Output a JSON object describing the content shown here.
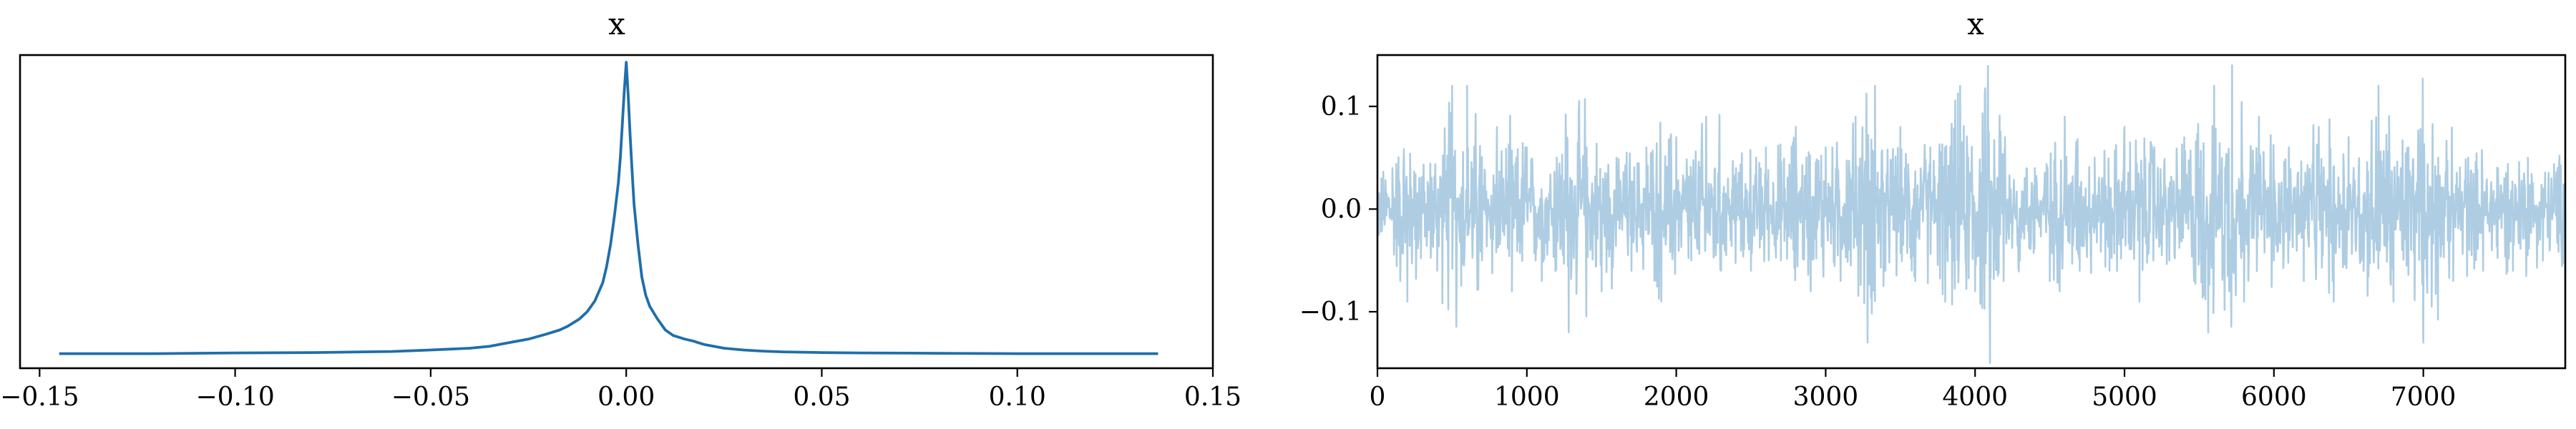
{
  "chart_data": [
    {
      "type": "line",
      "title": "x",
      "xlabel": "",
      "ylabel": "",
      "xlim": [
        -0.155,
        0.15
      ],
      "ylim": [
        -0.4,
        8.2
      ],
      "xticks": [
        -0.15,
        -0.1,
        -0.05,
        0.0,
        0.05,
        0.1,
        0.15
      ],
      "xtick_labels": [
        "−0.15",
        "−0.10",
        "−0.05",
        "0.00",
        "0.05",
        "0.10",
        "0.15"
      ],
      "yticks_visible": false,
      "grid": false,
      "color": "#1f6eab",
      "series": [
        {
          "x": [
            -0.145,
            -0.12,
            -0.1,
            -0.08,
            -0.06,
            -0.05,
            -0.04,
            -0.035,
            -0.03,
            -0.025,
            -0.02,
            -0.017,
            -0.015,
            -0.012,
            -0.01,
            -0.008,
            -0.006,
            -0.005,
            -0.004,
            -0.003,
            -0.002,
            -0.0015,
            -0.001,
            -0.0005,
            0.0,
            0.0005,
            0.001,
            0.0015,
            0.002,
            0.003,
            0.004,
            0.005,
            0.006,
            0.008,
            0.01,
            0.012,
            0.015,
            0.017,
            0.02,
            0.025,
            0.03,
            0.035,
            0.04,
            0.05,
            0.06,
            0.08,
            0.1,
            0.12,
            0.136
          ],
          "y": [
            0.0,
            0.0,
            0.02,
            0.03,
            0.06,
            0.1,
            0.15,
            0.2,
            0.3,
            0.4,
            0.55,
            0.65,
            0.75,
            0.95,
            1.15,
            1.45,
            1.95,
            2.4,
            3.0,
            3.8,
            4.7,
            5.4,
            6.3,
            7.2,
            8.0,
            7.1,
            6.0,
            5.0,
            4.1,
            3.0,
            2.1,
            1.6,
            1.3,
            0.95,
            0.65,
            0.5,
            0.4,
            0.35,
            0.25,
            0.15,
            0.1,
            0.07,
            0.05,
            0.03,
            0.02,
            0.01,
            0.0,
            0.0,
            0.0
          ]
        }
      ]
    },
    {
      "type": "line",
      "title": "x",
      "xlabel": "",
      "ylabel": "",
      "xlim": [
        0,
        7950
      ],
      "ylim": [
        -0.155,
        0.15
      ],
      "xticks": [
        0,
        1000,
        2000,
        3000,
        4000,
        5000,
        6000,
        7000
      ],
      "xtick_labels": [
        "0",
        "1000",
        "2000",
        "3000",
        "4000",
        "5000",
        "6000",
        "7000"
      ],
      "yticks": [
        0.1,
        0.0,
        -0.1
      ],
      "ytick_labels": [
        "0.1",
        "0.0",
        "−0.1"
      ],
      "grid": false,
      "color": "#aecde3",
      "n_samples": 8000,
      "series": [
        {
          "x": [
            0,
            100,
            200,
            300,
            400,
            500,
            530,
            600,
            700,
            800,
            900,
            1000,
            1100,
            1200,
            1280,
            1400,
            1500,
            1600,
            1700,
            1800,
            1900,
            2000,
            2100,
            2200,
            2300,
            2400,
            2500,
            2600,
            2700,
            2800,
            2900,
            3000,
            3100,
            3200,
            3280,
            3330,
            3400,
            3500,
            3600,
            3700,
            3800,
            3900,
            4000,
            4100,
            4200,
            4300,
            4400,
            4500,
            4600,
            4700,
            4800,
            4900,
            5000,
            5100,
            5200,
            5300,
            5400,
            5560,
            5600,
            5700,
            5720,
            5800,
            5900,
            6000,
            6100,
            6200,
            6300,
            6400,
            6500,
            6600,
            6700,
            6800,
            6900,
            7000,
            7100,
            7200,
            7300,
            7400,
            7500,
            7600,
            7700,
            7800,
            7900,
            7950
          ],
          "y": [
            0.0,
            0.04,
            -0.09,
            0.03,
            -0.06,
            0.12,
            -0.07,
            0.12,
            -0.05,
            0.08,
            -0.08,
            0.06,
            -0.07,
            0.05,
            -0.12,
            0.06,
            -0.08,
            0.05,
            -0.06,
            0.06,
            -0.09,
            0.07,
            -0.05,
            0.09,
            -0.06,
            0.04,
            -0.06,
            0.06,
            -0.05,
            0.08,
            -0.08,
            0.06,
            -0.07,
            0.09,
            -0.13,
            0.12,
            -0.06,
            0.08,
            -0.07,
            0.06,
            -0.09,
            0.12,
            -0.08,
            -0.15,
            0.07,
            -0.05,
            0.04,
            -0.07,
            0.09,
            -0.06,
            0.05,
            -0.06,
            0.08,
            -0.09,
            0.06,
            -0.05,
            0.07,
            -0.12,
            0.12,
            -0.08,
            0.14,
            -0.09,
            0.09,
            -0.05,
            0.06,
            -0.07,
            0.08,
            -0.09,
            0.07,
            -0.06,
            0.12,
            -0.09,
            0.06,
            -0.13,
            0.05,
            -0.07,
            0.05,
            -0.06,
            0.04,
            -0.06,
            0.05,
            -0.05,
            0.04,
            -0.07
          ]
        }
      ]
    }
  ]
}
